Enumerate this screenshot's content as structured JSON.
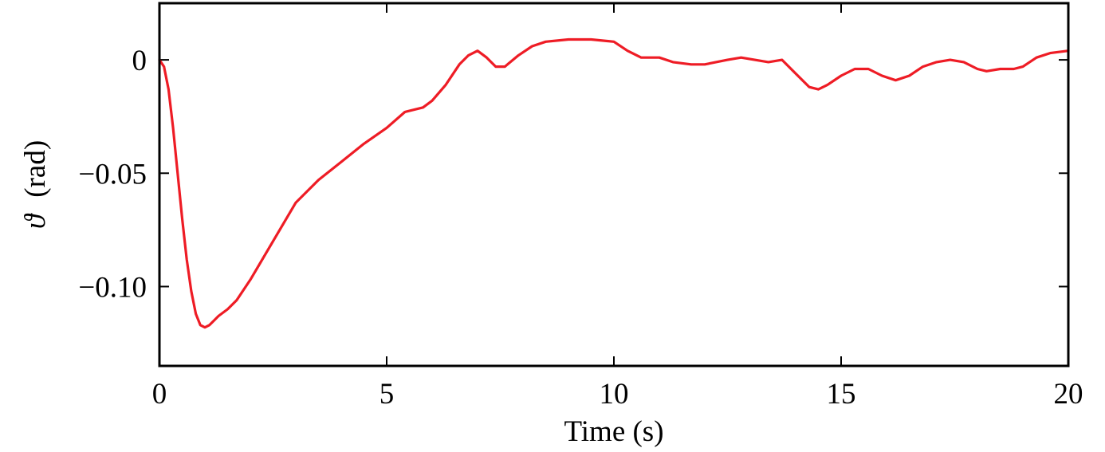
{
  "chart_data": {
    "type": "line",
    "xlabel": "Time (s)",
    "ylabel": {
      "symbol": "ϑ",
      "unit": "(rad)"
    },
    "xlim": [
      0,
      20
    ],
    "ylim": [
      -0.135,
      0.025
    ],
    "x_ticks": [
      0,
      5,
      10,
      15,
      20
    ],
    "x_tick_labels": [
      "0",
      "5",
      "10",
      "15",
      "20"
    ],
    "y_ticks": [
      0,
      -0.05,
      -0.1
    ],
    "y_tick_labels": [
      "0",
      "−0.05",
      "−0.10"
    ],
    "grid": false,
    "series": [
      {
        "color": "#ee1c25",
        "x": [
          0,
          0.1,
          0.2,
          0.3,
          0.4,
          0.5,
          0.6,
          0.7,
          0.8,
          0.9,
          1.0,
          1.1,
          1.2,
          1.3,
          1.5,
          1.7,
          2.0,
          2.5,
          3.0,
          3.5,
          4.0,
          4.5,
          5.0,
          5.4,
          5.8,
          6.0,
          6.3,
          6.6,
          6.8,
          7.0,
          7.2,
          7.4,
          7.6,
          7.9,
          8.2,
          8.5,
          9.0,
          9.5,
          10.0,
          10.3,
          10.6,
          11.0,
          11.3,
          11.7,
          12.0,
          12.5,
          12.8,
          13.1,
          13.4,
          13.7,
          14.0,
          14.3,
          14.5,
          14.7,
          15.0,
          15.3,
          15.6,
          15.9,
          16.2,
          16.5,
          16.8,
          17.1,
          17.4,
          17.7,
          18.0,
          18.2,
          18.5,
          18.8,
          19.0,
          19.3,
          19.6,
          20.0
        ],
        "y": [
          0,
          -0.003,
          -0.013,
          -0.03,
          -0.05,
          -0.07,
          -0.088,
          -0.102,
          -0.112,
          -0.117,
          -0.118,
          -0.117,
          -0.115,
          -0.113,
          -0.11,
          -0.106,
          -0.097,
          -0.08,
          -0.063,
          -0.053,
          -0.045,
          -0.037,
          -0.03,
          -0.023,
          -0.021,
          -0.018,
          -0.011,
          -0.002,
          0.002,
          0.004,
          0.001,
          -0.003,
          -0.003,
          0.002,
          0.006,
          0.008,
          0.009,
          0.009,
          0.008,
          0.004,
          0.001,
          0.001,
          -0.001,
          -0.002,
          -0.002,
          0.0,
          0.001,
          0.0,
          -0.001,
          0.0,
          -0.006,
          -0.012,
          -0.013,
          -0.011,
          -0.007,
          -0.004,
          -0.004,
          -0.007,
          -0.009,
          -0.007,
          -0.003,
          -0.001,
          0.0,
          -0.001,
          -0.004,
          -0.005,
          -0.004,
          -0.004,
          -0.003,
          0.001,
          0.003,
          0.004
        ]
      }
    ]
  }
}
